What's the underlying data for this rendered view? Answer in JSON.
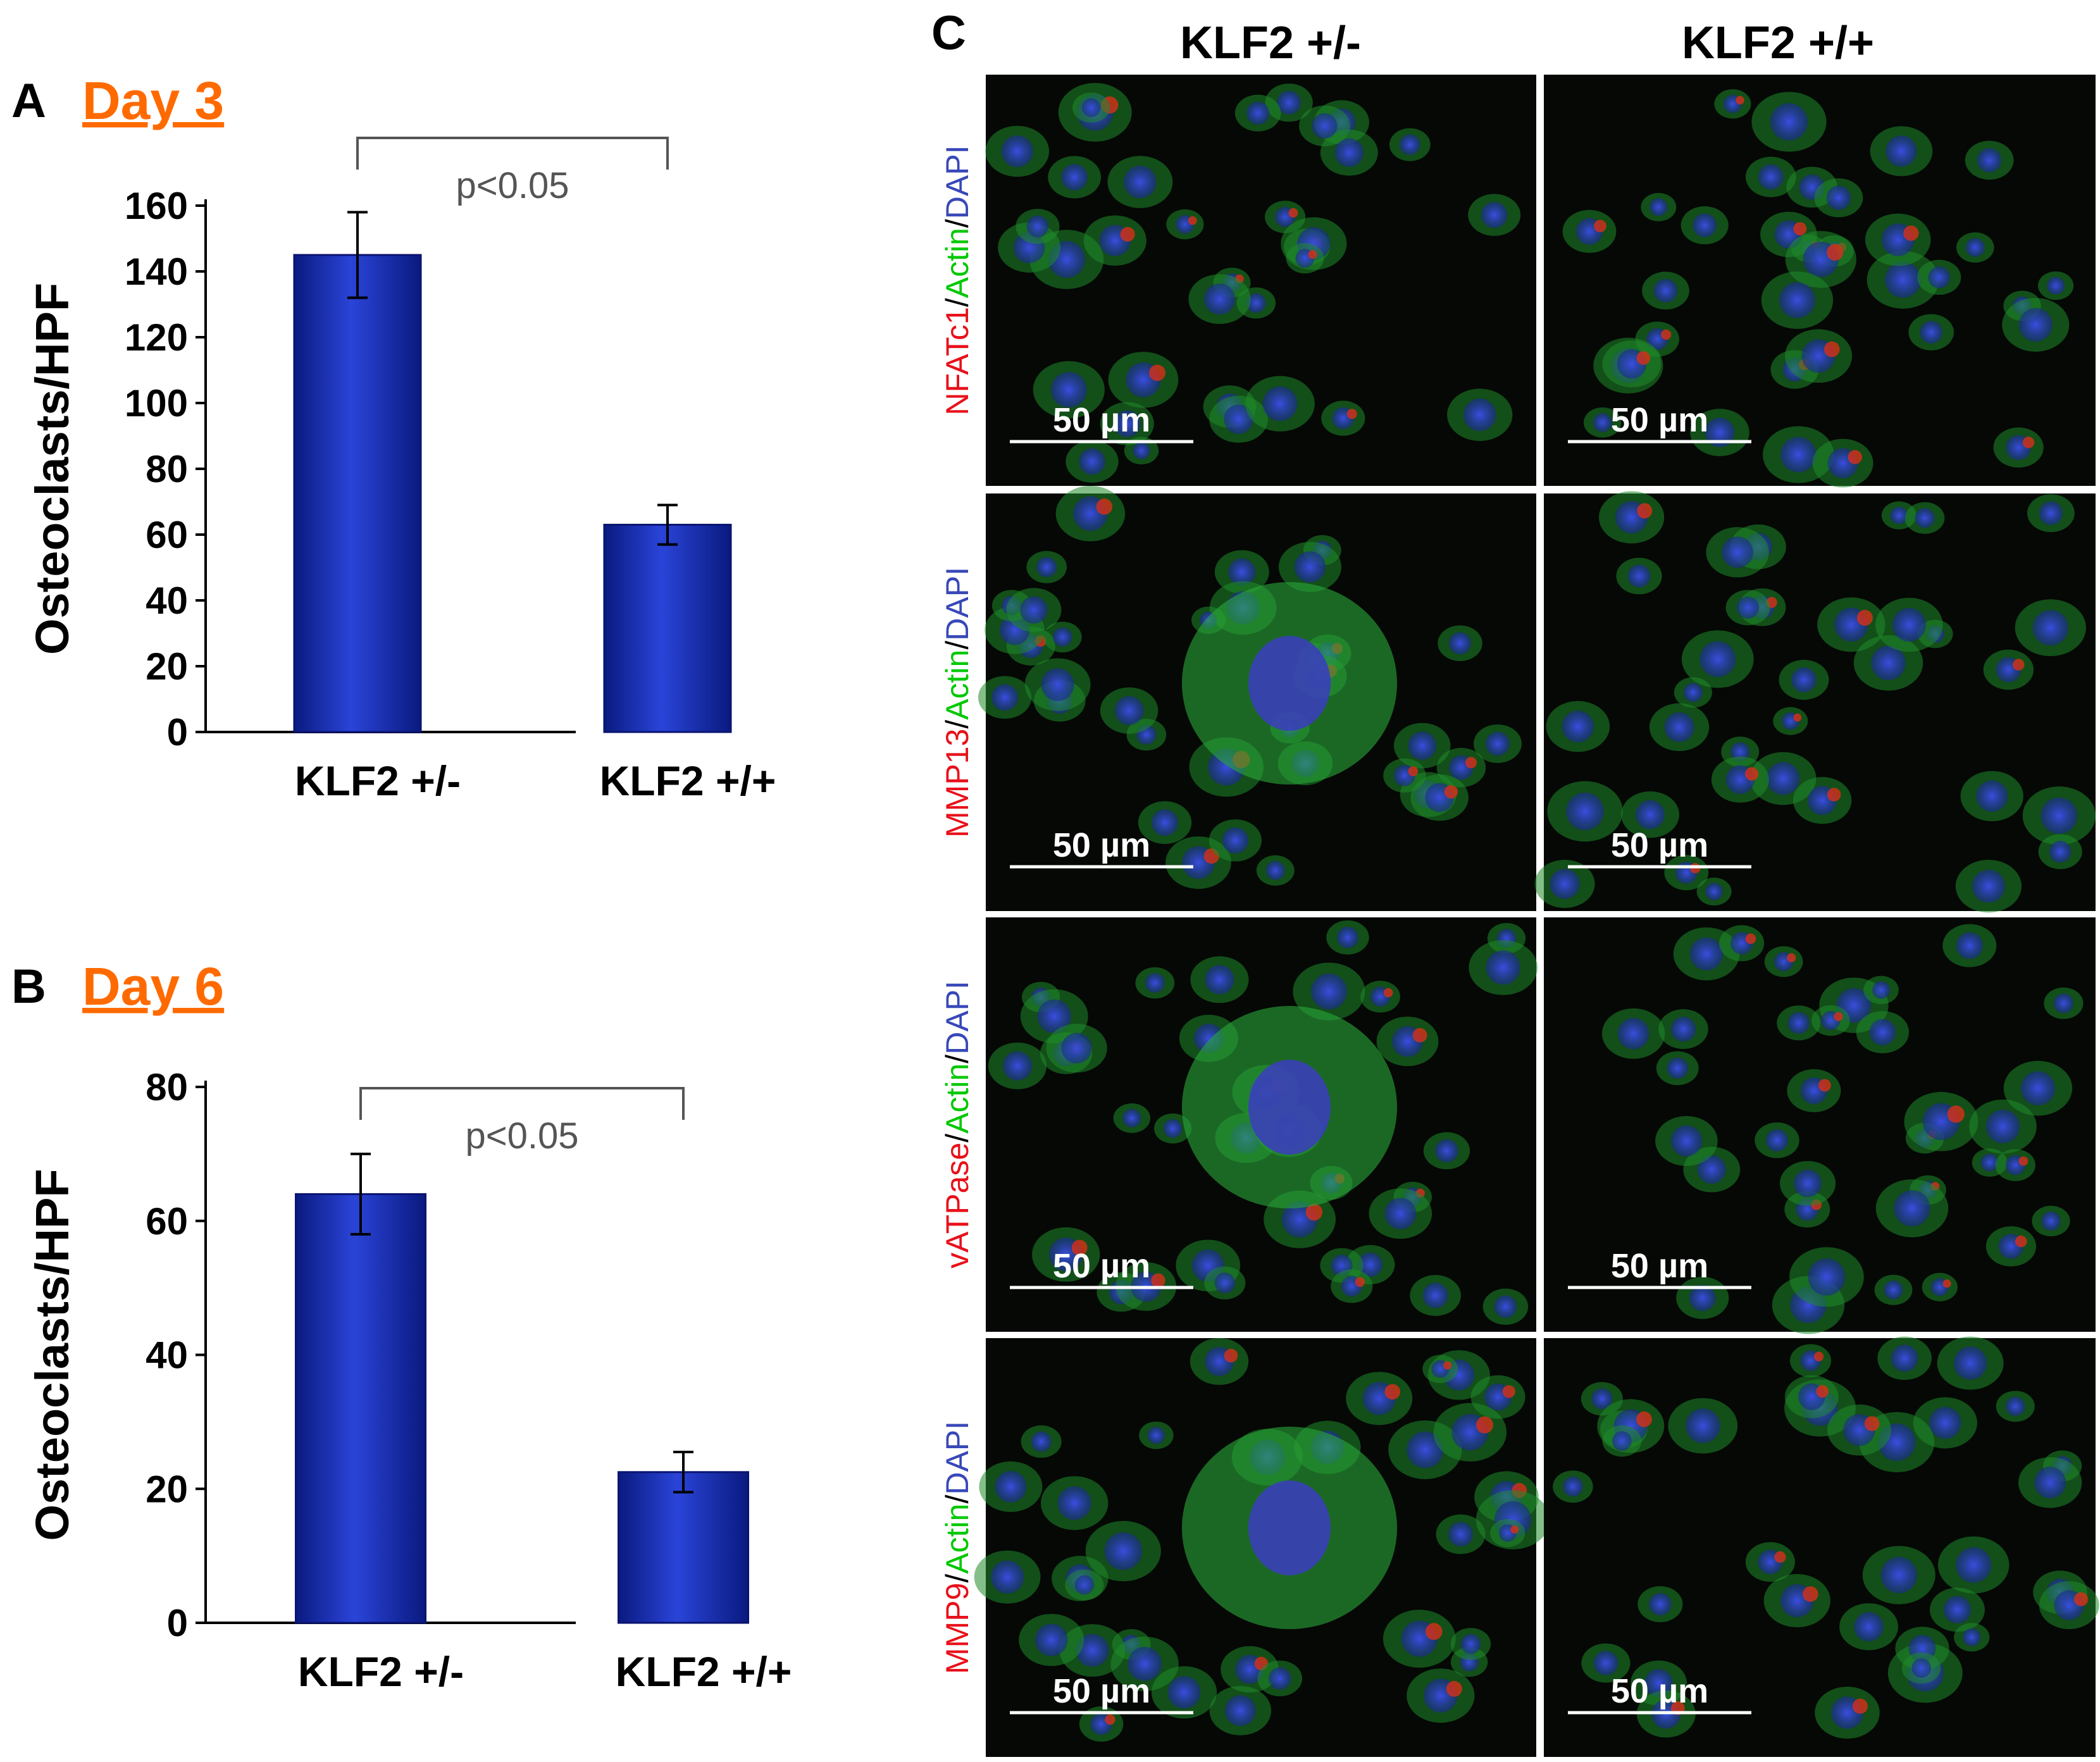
{
  "panel_a": {
    "letter": "A",
    "title": "Day 3"
  },
  "panel_b": {
    "letter": "B",
    "title": "Day 6"
  },
  "panel_c": {
    "letter": "C",
    "columns": [
      "KLF2 +/-",
      "KLF2 +/+"
    ],
    "rows": [
      {
        "stain": "NFATc1",
        "actin": "Actin",
        "dapi": "DAPI"
      },
      {
        "stain": "MMP13",
        "actin": "Actin",
        "dapi": "DAPI"
      },
      {
        "stain": "vATPase",
        "actin": "Actin",
        "dapi": "DAPI"
      },
      {
        "stain": "MMP9",
        "actin": "Actin",
        "dapi": "DAPI"
      }
    ],
    "separator": "/",
    "scale_bar": "50 µm",
    "colors": {
      "stain": "#e8101a",
      "actin": "#00c800",
      "dapi": "#3848b8"
    }
  },
  "chart_data": [
    {
      "type": "bar",
      "categories": [
        "KLF2 +/-",
        "KLF2 +/+"
      ],
      "values": [
        145,
        63
      ],
      "errors": [
        13,
        6
      ],
      "ylabel": "Osteoclasts/HPF",
      "ylim": [
        0,
        160
      ],
      "yticks": [
        0,
        20,
        40,
        60,
        80,
        100,
        120,
        140,
        160
      ],
      "significance": "p<0.05",
      "bar_color": "#1a2fb0",
      "grid": false
    },
    {
      "type": "bar",
      "categories": [
        "KLF2 +/-",
        "KLF2 +/+"
      ],
      "values": [
        64,
        22.5
      ],
      "errors": [
        6,
        3
      ],
      "ylabel": "Osteoclasts/HPF",
      "ylim": [
        0,
        80
      ],
      "yticks": [
        0,
        20,
        40,
        60,
        80
      ],
      "significance": "p<0.05",
      "bar_color": "#1a2fb0",
      "grid": false
    }
  ]
}
